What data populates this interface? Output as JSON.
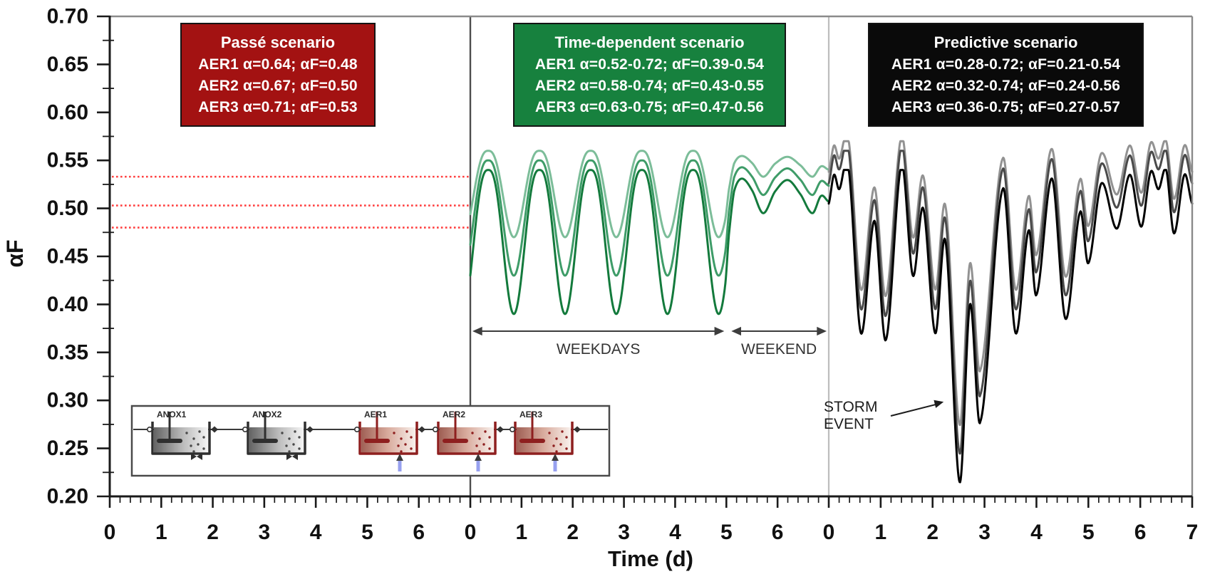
{
  "figure": {
    "y_axis": {
      "label": "αF",
      "min": 0.2,
      "max": 0.7,
      "major_step": 0.05,
      "minor_step": 0.025,
      "major_tick_labels": [
        "0.70",
        "0.65",
        "0.60",
        "0.55",
        "0.50",
        "0.45",
        "0.40",
        "0.35",
        "0.30",
        "0.25",
        "0.20"
      ]
    },
    "x_axis": {
      "label": "Time (d)",
      "unit": "d",
      "minor_step": 0.2,
      "panel_tick_labels": [
        [
          "0",
          "1",
          "2",
          "3",
          "4",
          "5",
          "6"
        ],
        [
          "0",
          "1",
          "2",
          "3",
          "4",
          "5",
          "6"
        ],
        [
          "0",
          "1",
          "2",
          "3",
          "4",
          "5",
          "6",
          "7"
        ]
      ]
    }
  },
  "chart_data": {
    "type": "line",
    "title": "",
    "ylabel": "αF",
    "xlabel": "Time (d)",
    "ylim": [
      0.2,
      0.7
    ],
    "panels": [
      {
        "name": "passe",
        "scenario_box": {
          "title": "Passé scenario",
          "lines": [
            "AER1 α=0.64; αF=0.48",
            "AER2 α=0.67; αF=0.50",
            "AER3 α=0.71; αF=0.53"
          ],
          "bg": "#A31212",
          "text_color": "#ffffff"
        },
        "reference_lines": {
          "style": "dotted",
          "color": "#FF4040",
          "values": [
            0.533,
            0.503,
            0.48
          ]
        }
      },
      {
        "name": "time_dependent",
        "scenario_box": {
          "title": "Time-dependent scenario",
          "lines": [
            "AER1 α=0.52-0.72; αF=0.39-0.54",
            "AER2 α=0.58-0.74; αF=0.43-0.55",
            "AER3 α=0.63-0.75; αF=0.47-0.56"
          ],
          "bg": "#17813E",
          "text_color": "#ffffff"
        },
        "series": [
          {
            "name": "AER1",
            "color": "#137A3C",
            "aF_min": 0.39,
            "aF_max": 0.54
          },
          {
            "name": "AER2",
            "color": "#3E9C68",
            "aF_min": 0.43,
            "aF_max": 0.55
          },
          {
            "name": "AER3",
            "color": "#7CBD99",
            "aF_min": 0.47,
            "aF_max": 0.56
          }
        ],
        "signal": {
          "weekday": {
            "type": "cosine",
            "peak_t": 0.35,
            "period": 1.0,
            "t_start": 0.0,
            "t_end": 4.97,
            "sharpness": 1.35
          },
          "weekend_s_keypoints": [
            [
              4.97,
              0.82
            ],
            [
              5.05,
              0.45
            ],
            [
              5.15,
              0.15
            ],
            [
              5.3,
              0.06
            ],
            [
              5.5,
              0.14
            ],
            [
              5.72,
              0.3
            ],
            [
              5.95,
              0.15
            ],
            [
              6.2,
              0.07
            ],
            [
              6.45,
              0.17
            ],
            [
              6.68,
              0.3
            ],
            [
              6.85,
              0.18
            ],
            [
              7.0,
              0.22
            ]
          ]
        },
        "annotations": {
          "weekdays": {
            "label": "WEEKDAYS",
            "t_from": 0,
            "t_to": 5
          },
          "weekend": {
            "label": "WEEKEND",
            "t_from": 5,
            "t_to": 7
          }
        }
      },
      {
        "name": "predictive",
        "scenario_box": {
          "title": "Predictive scenario",
          "lines": [
            "AER1 α=0.28-0.72; αF=0.21-0.54",
            "AER2 α=0.32-0.74; αF=0.24-0.56",
            "AER3 α=0.36-0.75; αF=0.27-0.57"
          ],
          "bg": "#0A0A0A",
          "text_color": "#ffffff"
        },
        "series": [
          {
            "name": "AER1",
            "color": "#000000",
            "aF_min": 0.21,
            "aF_max": 0.54
          },
          {
            "name": "AER2",
            "color": "#4A4A4A",
            "aF_min": 0.24,
            "aF_max": 0.56
          },
          {
            "name": "AER3",
            "color": "#929292",
            "aF_min": 0.27,
            "aF_max": 0.57
          }
        ],
        "aer1_keypoints": [
          [
            0.0,
            0.505
          ],
          [
            0.1,
            0.535
          ],
          [
            0.2,
            0.52
          ],
          [
            0.38,
            0.542
          ],
          [
            0.62,
            0.37
          ],
          [
            0.88,
            0.487
          ],
          [
            1.1,
            0.363
          ],
          [
            1.4,
            0.545
          ],
          [
            1.62,
            0.43
          ],
          [
            1.82,
            0.5
          ],
          [
            2.05,
            0.37
          ],
          [
            2.25,
            0.465
          ],
          [
            2.52,
            0.215
          ],
          [
            2.72,
            0.4
          ],
          [
            2.92,
            0.278
          ],
          [
            3.35,
            0.52
          ],
          [
            3.6,
            0.37
          ],
          [
            3.85,
            0.477
          ],
          [
            4.0,
            0.41
          ],
          [
            4.3,
            0.531
          ],
          [
            4.56,
            0.385
          ],
          [
            4.84,
            0.496
          ],
          [
            5.0,
            0.443
          ],
          [
            5.25,
            0.526
          ],
          [
            5.55,
            0.479
          ],
          [
            5.8,
            0.535
          ],
          [
            6.02,
            0.481
          ],
          [
            6.2,
            0.538
          ],
          [
            6.35,
            0.52
          ],
          [
            6.5,
            0.54
          ],
          [
            6.65,
            0.474
          ],
          [
            6.85,
            0.535
          ],
          [
            7.0,
            0.505
          ]
        ],
        "annotations": {
          "storm": {
            "label_lines": [
              "STORM",
              "EVENT"
            ],
            "arrow_t": 2.24,
            "arrow_v": 0.3
          }
        }
      }
    ],
    "inset": {
      "tanks": [
        {
          "name": "ANOX1",
          "type": "anoxic"
        },
        {
          "name": "ANOX2",
          "type": "anoxic"
        },
        {
          "name": "AER1",
          "type": "aerated"
        },
        {
          "name": "AER2",
          "type": "aerated"
        },
        {
          "name": "AER3",
          "type": "aerated"
        }
      ],
      "colors": {
        "anoxic_wall": "#2F2F2F",
        "aerated_wall": "#8E1F1F",
        "aeration_arrow": "#97A0EF",
        "box_border": "#4A4A4A"
      }
    }
  }
}
